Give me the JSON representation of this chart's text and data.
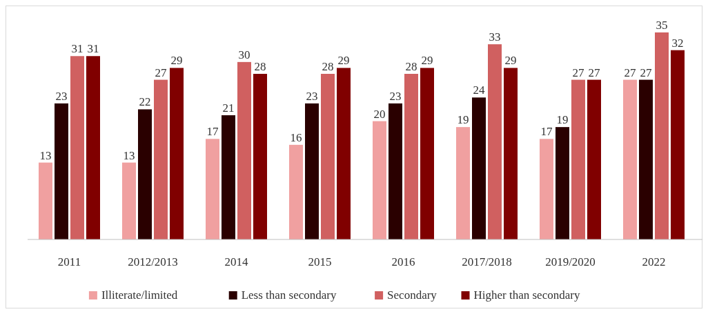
{
  "chart_data": {
    "type": "bar",
    "categories": [
      "2011",
      "2012/2013",
      "2014",
      "2015",
      "2016",
      "2017/2018",
      "2019/2020",
      "2022"
    ],
    "series": [
      {
        "name": "Illiterate/limited",
        "color": "#f0a0a0",
        "values": [
          13,
          13,
          17,
          16,
          20,
          19,
          17,
          27
        ]
      },
      {
        "name": "Less than secondary",
        "color": "#2a0000",
        "values": [
          23,
          22,
          21,
          23,
          23,
          24,
          19,
          27
        ]
      },
      {
        "name": "Secondary",
        "color": "#d06060",
        "values": [
          31,
          27,
          30,
          28,
          28,
          33,
          27,
          35
        ]
      },
      {
        "name": "Higher than secondary",
        "color": "#800000",
        "values": [
          31,
          29,
          28,
          29,
          29,
          29,
          27,
          32
        ]
      }
    ],
    "data_labels": true,
    "legend": "bottom"
  }
}
